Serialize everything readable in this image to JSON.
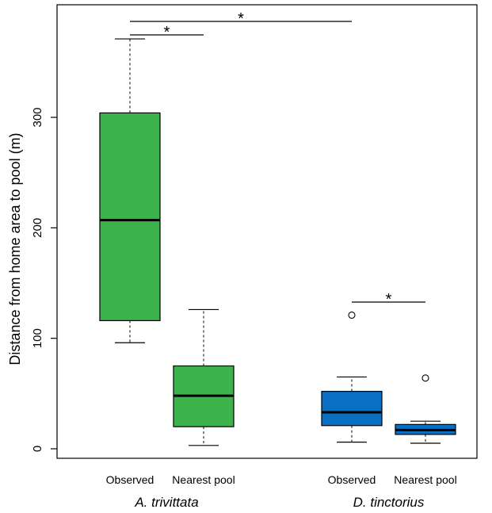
{
  "chart_data": {
    "type": "boxplot",
    "ylabel": "Distance from home area to pool (m)",
    "ylim": [
      -5,
      400
    ],
    "yticks": [
      0,
      100,
      200,
      300
    ],
    "tick_labels": [
      "0",
      "100",
      "200",
      "300"
    ],
    "categories": [
      "Observed",
      "Nearest pool",
      "Observed",
      "Nearest pool"
    ],
    "groups": [
      {
        "name": "A. trivittata",
        "color": "#3cb44b"
      },
      {
        "name": "D. tinctorius",
        "color": "#0a6fc2"
      }
    ],
    "boxes": [
      {
        "group": 0,
        "label": "Observed",
        "min": 96,
        "q1": 116,
        "median": 207,
        "q3": 304,
        "max": 371,
        "outliers": []
      },
      {
        "group": 0,
        "label": "Nearest pool",
        "min": 3,
        "q1": 20,
        "median": 48,
        "q3": 75,
        "max": 126,
        "outliers": []
      },
      {
        "group": 1,
        "label": "Observed",
        "min": 6,
        "q1": 21,
        "median": 33,
        "q3": 52,
        "max": 65,
        "outliers": [
          121
        ]
      },
      {
        "group": 1,
        "label": "Nearest pool",
        "min": 5,
        "q1": 13,
        "median": 17,
        "q3": 22,
        "max": 25,
        "outliers": [
          64
        ]
      }
    ],
    "significance": [
      {
        "from": 0,
        "to": 1,
        "label": "*"
      },
      {
        "from": 0,
        "to": 2,
        "label": "*"
      },
      {
        "from": 2,
        "to": 3,
        "label": "*"
      }
    ]
  }
}
